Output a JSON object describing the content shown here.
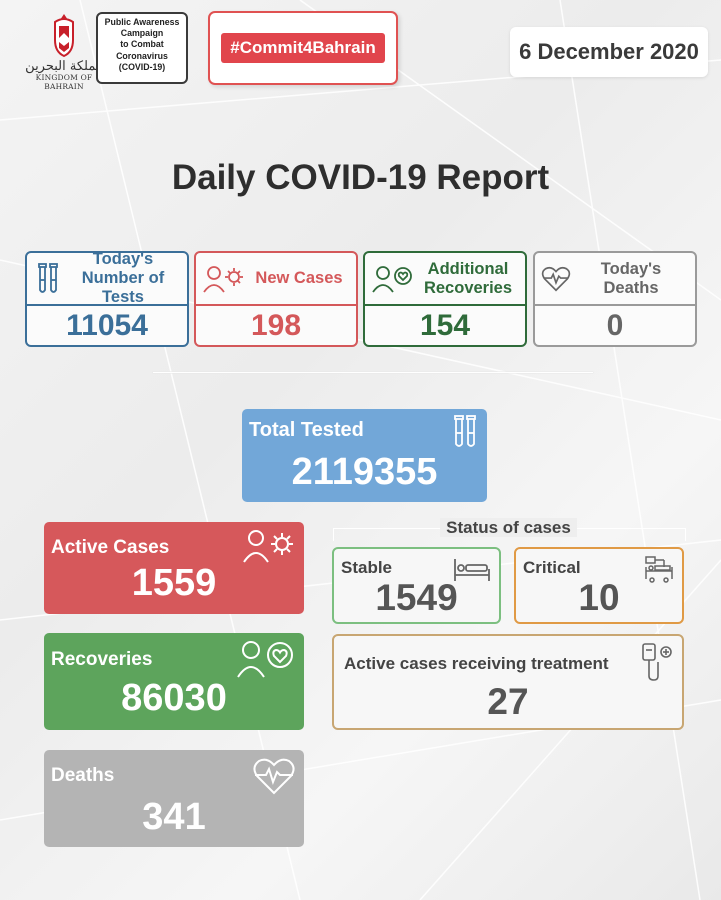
{
  "header": {
    "emblem_arabic": "مملكة البحرين",
    "emblem_english": "KINGDOM OF BAHRAIN",
    "campaign_lines": [
      "Public Awareness",
      "Campaign",
      "to Combat",
      "Coronavirus",
      "(COVID-19)"
    ],
    "hashtag": "#Commit4Bahrain",
    "date": "6 December 2020"
  },
  "title": "Daily COVID-19 Report",
  "daily": {
    "tests": {
      "label": "Today's Number of Tests",
      "value": "11054",
      "icon": "test-tubes-icon",
      "color": "#3b6f99"
    },
    "new_cases": {
      "label": "New Cases",
      "value": "198",
      "icon": "person-virus-icon",
      "color": "#d4585a"
    },
    "recoveries": {
      "label": "Additional Recoveries",
      "value": "154",
      "icon": "person-heart-icon",
      "color": "#2f6b3a"
    },
    "deaths": {
      "label": "Today's Deaths",
      "value": "0",
      "icon": "heartbeat-icon",
      "color": "#9a9a9a"
    }
  },
  "totals": {
    "tested": {
      "label": "Total Tested",
      "value": "2119355",
      "color": "#72a7d8"
    },
    "active": {
      "label": "Active Cases",
      "value": "1559",
      "color": "#d6585b"
    },
    "recoveries": {
      "label": "Recoveries",
      "value": "86030",
      "color": "#5da45c"
    },
    "deaths": {
      "label": "Deaths",
      "value": "341",
      "color": "#b4b4b4"
    }
  },
  "status": {
    "title": "Status of cases",
    "stable": {
      "label": "Stable",
      "value": "1549",
      "icon": "bed-icon"
    },
    "critical": {
      "label": "Critical",
      "value": "10",
      "icon": "icu-bed-icon"
    },
    "treatment": {
      "label": "Active cases receiving treatment",
      "value": "27",
      "icon": "iv-drip-icon"
    }
  }
}
